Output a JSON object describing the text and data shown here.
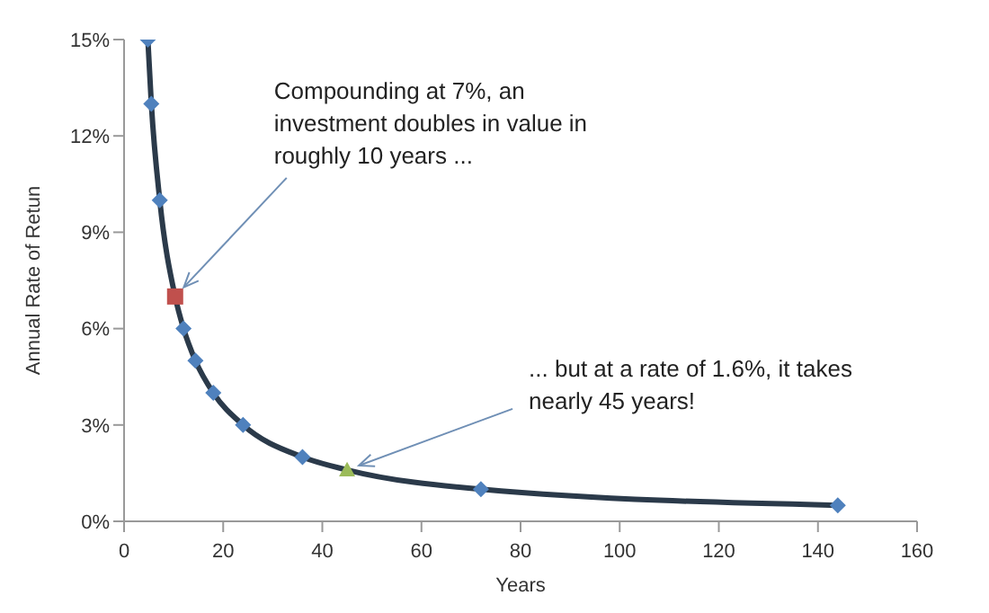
{
  "chart_data": {
    "type": "line",
    "xlabel": "Years",
    "ylabel": "Annual Rate of Retun",
    "xlim": [
      0,
      160
    ],
    "xticks": [
      0,
      20,
      40,
      60,
      80,
      100,
      120,
      140,
      160
    ],
    "ylim": [
      0,
      15
    ],
    "yticks": [
      {
        "value": 0,
        "label": "0%"
      },
      {
        "value": 3,
        "label": "3%"
      },
      {
        "value": 6,
        "label": "6%"
      },
      {
        "value": 9,
        "label": "9%"
      },
      {
        "value": 12,
        "label": "12%"
      },
      {
        "value": 15,
        "label": "15%"
      }
    ],
    "line_style": "solid",
    "series": [
      {
        "marker": "none",
        "color": "#2b3a4a",
        "x": [
          4.8,
          5.5,
          7.2,
          10.3,
          12,
          14.4,
          18,
          24,
          36,
          45,
          72,
          144
        ],
        "values": [
          15,
          13,
          10,
          7,
          6,
          5,
          4,
          3,
          2,
          1.6,
          1,
          0.5
        ]
      },
      {
        "type": "scatter",
        "marker": "diamond",
        "color": "#4f81bd",
        "x": [
          4.8,
          5.5,
          7.2,
          12,
          14.4,
          18,
          24,
          36,
          72,
          144
        ],
        "values": [
          15,
          13,
          10,
          6,
          5,
          4,
          3,
          2,
          1,
          0.5
        ]
      },
      {
        "type": "scatter",
        "marker": "square",
        "color": "#c0504d",
        "x": [
          10.3
        ],
        "values": [
          7
        ]
      },
      {
        "type": "scatter",
        "marker": "triangle",
        "color": "#9bbb59",
        "x": [
          45
        ],
        "values": [
          1.6
        ]
      }
    ],
    "annotations": [
      {
        "text": "Compounding at 7%, an investment doubles in value in roughly 10 years ...",
        "x": 10.3,
        "y": 7
      },
      {
        "text": "... but at a rate of 1.6%, it takes nearly 45 years!",
        "x": 45,
        "y": 1.6
      }
    ]
  }
}
